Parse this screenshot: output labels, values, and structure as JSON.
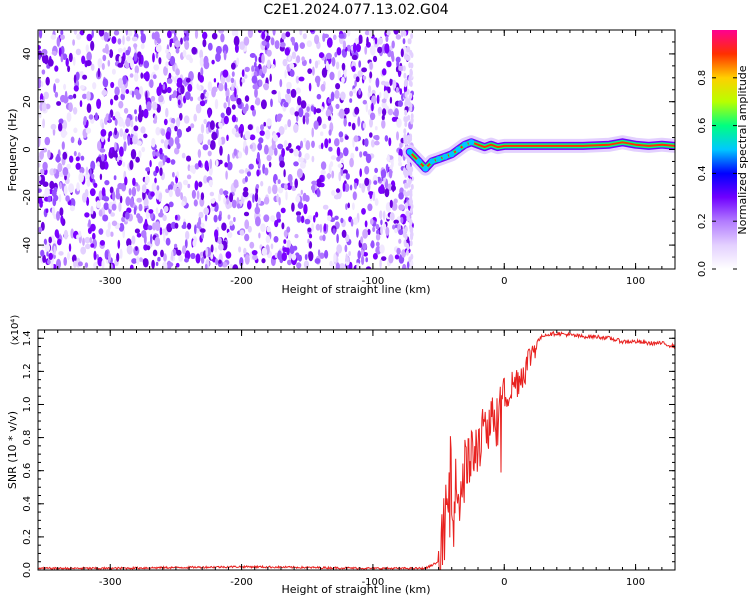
{
  "title": "C2E1.2024.077.13.02.G04",
  "colors": {
    "noise": "#7a00ff",
    "snr_line": "#e8211f",
    "colormap": [
      "#ffffff",
      "#e3d0ff",
      "#b27bff",
      "#7000ff",
      "#0000ff",
      "#00c8ff",
      "#00ff80",
      "#b8ff00",
      "#ffd000",
      "#ff3000",
      "#ff0090"
    ]
  },
  "chart_data": [
    {
      "type": "heatmap",
      "xlabel": "Height of straight line (km)",
      "ylabel": "Frequency (Hz)",
      "xlim": [
        -355,
        130
      ],
      "ylim": [
        -50,
        50
      ],
      "x_ticks": [
        -300,
        -200,
        -100,
        0,
        100
      ],
      "y_ticks": [
        -40,
        -20,
        0,
        20,
        40
      ],
      "noise_region_x": [
        -355,
        -70
      ],
      "signal_trace": {
        "x": [
          -72,
          -65,
          -60,
          -55,
          -50,
          -45,
          -40,
          -35,
          -30,
          -25,
          -20,
          -15,
          -10,
          -5,
          0,
          20,
          40,
          60,
          80,
          90,
          100,
          110,
          120,
          130
        ],
        "freq": [
          -1,
          -5,
          -8,
          -5,
          -4,
          -3,
          -2,
          0,
          2,
          3,
          2,
          1,
          2,
          1,
          1.5,
          1.5,
          1.5,
          1.5,
          2,
          3,
          2,
          1.5,
          2,
          1.5
        ]
      },
      "colorbar": {
        "label": "Normalized spectral amplitude",
        "range": [
          0,
          1
        ],
        "ticks": [
          "0.0",
          "0.2",
          "0.4",
          "0.6",
          "0.8"
        ]
      }
    },
    {
      "type": "line",
      "xlabel": "Height of straight line (km)",
      "ylabel": "SNR (10 * v/v)",
      "y_multiplier": "(x10⁴)",
      "xlim": [
        -355,
        130
      ],
      "ylim": [
        0,
        1.45
      ],
      "x_ticks": [
        -300,
        -200,
        -100,
        0,
        100
      ],
      "y_ticks": [
        "0.0",
        "0.2",
        "0.4",
        "0.6",
        "0.8",
        "1.0",
        "1.2",
        "1.4"
      ],
      "series": [
        {
          "color": "#e8211f",
          "x": [
            -355,
            -300,
            -200,
            -100,
            -60,
            -50,
            -45,
            -40,
            -35,
            -30,
            -25,
            -20,
            -15,
            -10,
            -5,
            0,
            5,
            10,
            15,
            20,
            25,
            30,
            40,
            50,
            60,
            70,
            80,
            90,
            100,
            110,
            120,
            130
          ],
          "y": [
            0.01,
            0.01,
            0.02,
            0.01,
            0.01,
            0.05,
            0.3,
            0.5,
            0.45,
            0.6,
            0.7,
            0.75,
            0.85,
            0.9,
            0.98,
            1.05,
            1.1,
            1.15,
            1.2,
            1.3,
            1.38,
            1.42,
            1.43,
            1.42,
            1.41,
            1.41,
            1.4,
            1.38,
            1.38,
            1.37,
            1.37,
            1.35
          ]
        }
      ]
    }
  ]
}
